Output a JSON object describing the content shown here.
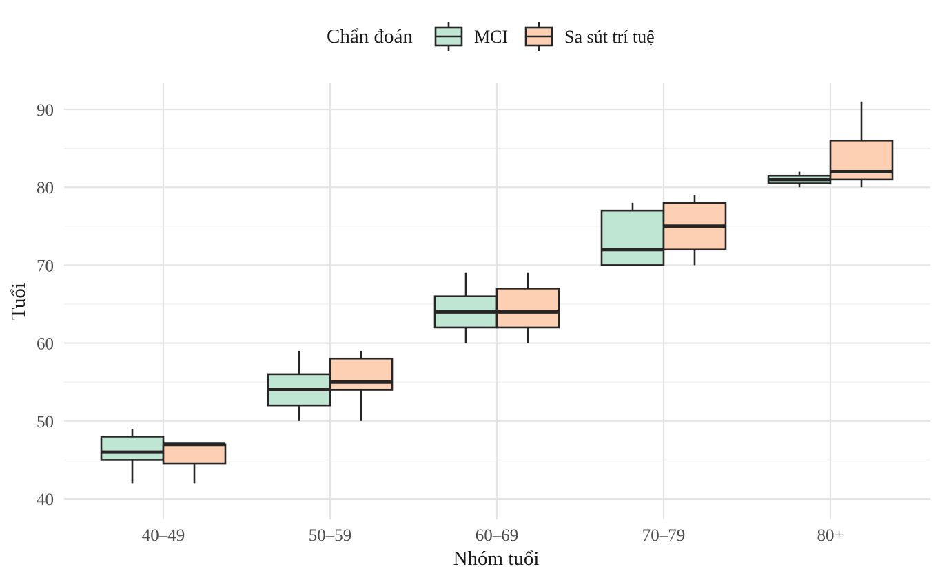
{
  "chart_data": {
    "type": "boxplot",
    "xlabel": "Nhóm tuổi",
    "ylabel": "Tuổi",
    "ylim": [
      38,
      93.5
    ],
    "yticks": [
      40,
      50,
      60,
      70,
      80,
      90
    ],
    "grid": true,
    "legend": {
      "title": "Chẩn đoán",
      "position": "top"
    },
    "categories": [
      "40–49",
      "50–59",
      "60–69",
      "70–79",
      "80+"
    ],
    "series": [
      {
        "name": "MCI",
        "color": "#bfe5d3",
        "boxes": [
          {
            "min": 42,
            "q1": 45,
            "median": 46,
            "q3": 48,
            "max": 49
          },
          {
            "min": 50,
            "q1": 52,
            "median": 54,
            "q3": 56,
            "max": 59
          },
          {
            "min": 60,
            "q1": 62,
            "median": 64,
            "q3": 66,
            "max": 69
          },
          {
            "min": 70,
            "q1": 70,
            "median": 72,
            "q3": 77,
            "max": 78
          },
          {
            "min": 80,
            "q1": 80.5,
            "median": 81,
            "q3": 81.5,
            "max": 82
          }
        ]
      },
      {
        "name": "Sa sút trí tuệ",
        "color": "#fdd0b4",
        "boxes": [
          {
            "min": 42,
            "q1": 44.5,
            "median": 47,
            "q3": 47,
            "max": 47
          },
          {
            "min": 50,
            "q1": 54,
            "median": 55,
            "q3": 58,
            "max": 59
          },
          {
            "min": 60,
            "q1": 62,
            "median": 64,
            "q3": 67,
            "max": 69
          },
          {
            "min": 70,
            "q1": 72,
            "median": 75,
            "q3": 78,
            "max": 79
          },
          {
            "min": 80,
            "q1": 81,
            "median": 82,
            "q3": 86,
            "max": 91
          }
        ]
      }
    ]
  }
}
